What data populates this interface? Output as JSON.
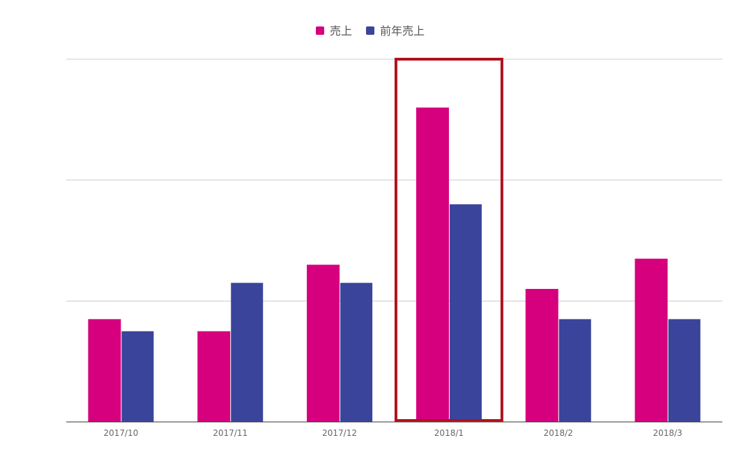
{
  "chart_data": {
    "type": "bar",
    "categories": [
      "2017/10",
      "2017/11",
      "2017/12",
      "2018/1",
      "2018/2",
      "2018/3"
    ],
    "series": [
      {
        "name": "売上",
        "color": "#d6007f",
        "values": [
          1.7,
          1.5,
          2.6,
          5.2,
          2.2,
          2.7
        ]
      },
      {
        "name": "前年売上",
        "color": "#3a449a",
        "values": [
          1.5,
          2.3,
          2.3,
          3.6,
          1.7,
          1.7
        ]
      }
    ],
    "ylim": [
      0,
      6
    ],
    "y_ticks": [
      0,
      2,
      4,
      6
    ],
    "grid": true,
    "legend_position": "top-center",
    "highlight": {
      "category": "2018/1",
      "color": "#b0121d"
    }
  }
}
